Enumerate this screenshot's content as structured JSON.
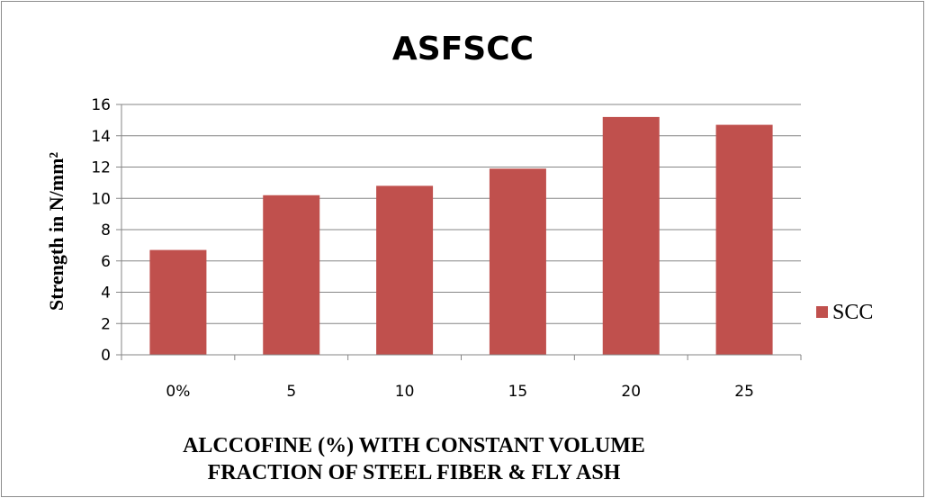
{
  "chart_data": {
    "type": "bar",
    "title": "ASFSCC",
    "categories": [
      "0%",
      "5",
      "10",
      "15",
      "20",
      "25"
    ],
    "series": [
      {
        "name": "SCC",
        "values": [
          6.7,
          10.2,
          10.8,
          11.9,
          15.2,
          14.7
        ],
        "color": "#c0504d"
      }
    ],
    "ylabel": "Strength in N/mm²",
    "xlabel_lines": [
      "ALCCOFINE  (%) WITH  CONSTANT VOLUME",
      "FRACTION  OF STEEL FIBER & FLY ASH"
    ],
    "ylim": [
      0,
      16
    ],
    "yticks": [
      0,
      2,
      4,
      6,
      8,
      10,
      12,
      14,
      16
    ],
    "grid": true,
    "legend_position": "right"
  }
}
